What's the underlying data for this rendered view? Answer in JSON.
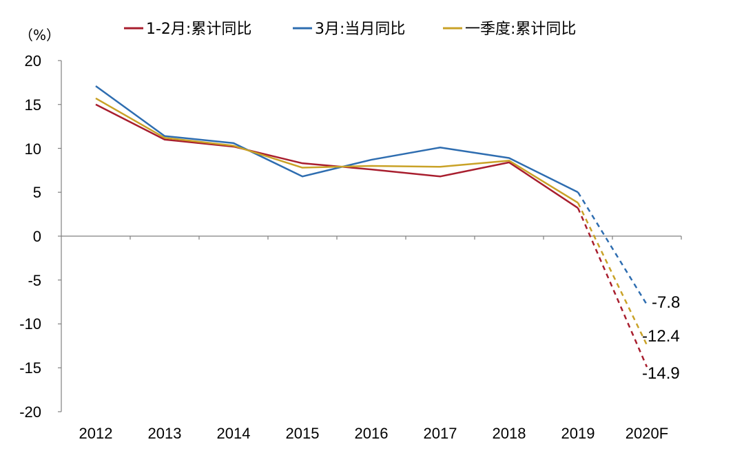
{
  "chart_data": {
    "type": "line",
    "unit_label": "（%）",
    "categories": [
      "2012",
      "2013",
      "2014",
      "2015",
      "2016",
      "2017",
      "2018",
      "2019",
      "2020F"
    ],
    "yticks": [
      "20",
      "15",
      "10",
      "5",
      "0",
      "-5",
      "-10",
      "-15",
      "-20"
    ],
    "ylim": [
      -20,
      20
    ],
    "series": [
      {
        "name": "1-2月:累计同比",
        "color": "#A81E2E",
        "values": [
          15.0,
          11.0,
          10.2,
          8.3,
          7.6,
          6.8,
          8.4,
          3.2,
          -14.9
        ],
        "forecast_label": "-14.9"
      },
      {
        "name": "3月:当月同比",
        "color": "#2E6DB0",
        "values": [
          17.1,
          11.4,
          10.6,
          6.8,
          8.7,
          10.1,
          8.9,
          5.0,
          -7.8
        ],
        "forecast_label": "-7.8"
      },
      {
        "name": "一季度:累计同比",
        "color": "#C9A227",
        "values": [
          15.7,
          11.2,
          10.3,
          7.8,
          8.0,
          7.9,
          8.6,
          3.8,
          -12.4
        ],
        "forecast_label": "-12.4"
      }
    ]
  }
}
